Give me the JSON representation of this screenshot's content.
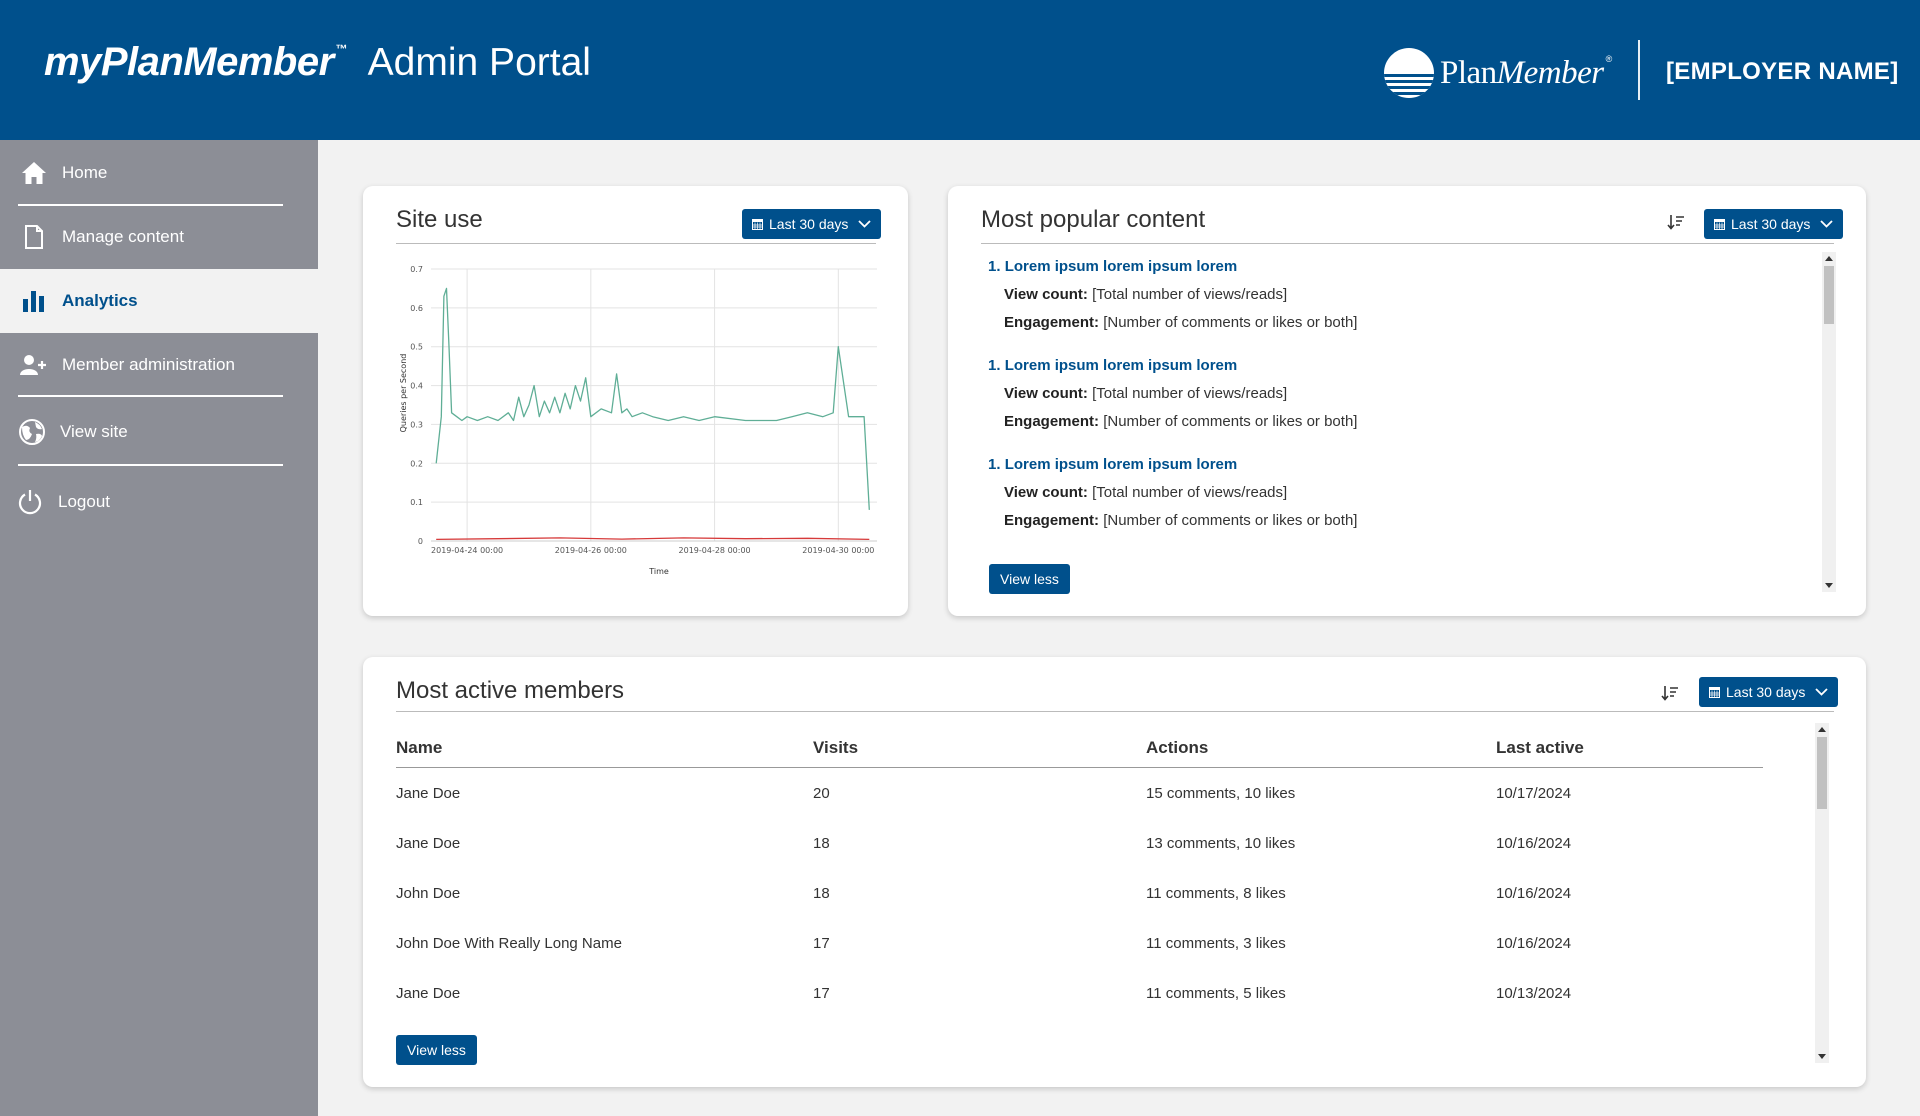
{
  "header": {
    "brand_name": "myPlanMember",
    "brand_tm": "™",
    "portal_title": "Admin Portal",
    "logo_plan": "Plan",
    "logo_member": "Member",
    "logo_reg": "®",
    "employer": "[EMPLOYER NAME]"
  },
  "sidebar": {
    "items": [
      {
        "label": "Home",
        "icon": "home-icon"
      },
      {
        "label": "Manage content",
        "icon": "document-icon"
      },
      {
        "label": "Analytics",
        "icon": "bar-chart-icon"
      },
      {
        "label": "Member administration",
        "icon": "user-plus-icon"
      },
      {
        "label": "View site",
        "icon": "globe-icon"
      },
      {
        "label": "Logout",
        "icon": "power-icon"
      }
    ],
    "active": "Analytics"
  },
  "site_use": {
    "title": "Site use",
    "date_range": "Last 30 days"
  },
  "popular": {
    "title": "Most popular content",
    "date_range": "Last 30 days",
    "view_count_label": "View count:",
    "engagement_label": "Engagement:",
    "items": [
      {
        "num": "1.",
        "title": "Lorem ipsum lorem ipsum lorem",
        "views": "[Total number of views/reads]",
        "engagement": "[Number of comments or likes or both]"
      },
      {
        "num": "1.",
        "title": "Lorem ipsum lorem ipsum lorem",
        "views": "[Total number of views/reads]",
        "engagement": "[Number of comments or likes or both]"
      },
      {
        "num": "1.",
        "title": "Lorem ipsum lorem ipsum lorem",
        "views": "[Total number of views/reads]",
        "engagement": "[Number of comments or likes or both]"
      }
    ],
    "view_less": "View less"
  },
  "members": {
    "title": "Most active members",
    "date_range": "Last 30 days",
    "columns": [
      "Name",
      "Visits",
      "Actions",
      "Last active"
    ],
    "rows": [
      [
        "Jane Doe",
        "20",
        "15 comments, 10 likes",
        "10/17/2024"
      ],
      [
        "Jane Doe",
        "18",
        "13 comments, 10 likes",
        "10/16/2024"
      ],
      [
        "John Doe",
        "18",
        "11 comments, 8 likes",
        "10/16/2024"
      ],
      [
        "John Doe With Really Long Name",
        "17",
        "11 comments, 3 likes",
        "10/16/2024"
      ],
      [
        "Jane Doe",
        "17",
        "11 comments, 5 likes",
        "10/13/2024"
      ]
    ],
    "view_less": "View less"
  },
  "chart_data": {
    "type": "line",
    "title": "",
    "xlabel": "Time",
    "ylabel": "Queries per Second",
    "ylim": [
      0,
      0.7
    ],
    "yticks": [
      "0",
      "0.1",
      "0.2",
      "0.3",
      "0.4",
      "0.5",
      "0.6",
      "0.7"
    ],
    "xticks": [
      "2019-04-24 00:00",
      "2019-04-26 00:00",
      "2019-04-28 00:00",
      "2019-04-30 00:00"
    ],
    "xlim": [
      "2019-04-23 10:00",
      "2019-04-30 15:00"
    ],
    "grid": true,
    "series": [
      {
        "color": "#5fae96",
        "x": [
          "2019-04-23 12:00",
          "2019-04-23 14:00",
          "2019-04-23 15:00",
          "2019-04-23 16:00",
          "2019-04-23 17:00",
          "2019-04-23 18:00",
          "2019-04-23 20:00",
          "2019-04-23 22:00",
          "2019-04-24 00:00",
          "2019-04-24 04:00",
          "2019-04-24 08:00",
          "2019-04-24 12:00",
          "2019-04-24 16:00",
          "2019-04-24 18:00",
          "2019-04-24 20:00",
          "2019-04-24 22:00",
          "2019-04-25 00:00",
          "2019-04-25 02:00",
          "2019-04-25 04:00",
          "2019-04-25 06:00",
          "2019-04-25 08:00",
          "2019-04-25 10:00",
          "2019-04-25 12:00",
          "2019-04-25 14:00",
          "2019-04-25 16:00",
          "2019-04-25 18:00",
          "2019-04-25 20:00",
          "2019-04-25 22:00",
          "2019-04-26 00:00",
          "2019-04-26 04:00",
          "2019-04-26 08:00",
          "2019-04-26 10:00",
          "2019-04-26 12:00",
          "2019-04-26 14:00",
          "2019-04-26 16:00",
          "2019-04-26 20:00",
          "2019-04-27 00:00",
          "2019-04-27 06:00",
          "2019-04-27 12:00",
          "2019-04-27 18:00",
          "2019-04-28 00:00",
          "2019-04-28 12:00",
          "2019-04-29 00:00",
          "2019-04-29 06:00",
          "2019-04-29 12:00",
          "2019-04-29 18:00",
          "2019-04-29 22:00",
          "2019-04-30 00:00",
          "2019-04-30 04:00",
          "2019-04-30 08:00",
          "2019-04-30 10:00",
          "2019-04-30 12:00"
        ],
        "y": [
          0.2,
          0.32,
          0.63,
          0.65,
          0.5,
          0.33,
          0.32,
          0.31,
          0.32,
          0.31,
          0.32,
          0.31,
          0.33,
          0.31,
          0.37,
          0.32,
          0.35,
          0.4,
          0.32,
          0.36,
          0.33,
          0.37,
          0.33,
          0.38,
          0.34,
          0.4,
          0.36,
          0.42,
          0.32,
          0.34,
          0.33,
          0.43,
          0.33,
          0.34,
          0.32,
          0.33,
          0.32,
          0.31,
          0.32,
          0.31,
          0.32,
          0.31,
          0.31,
          0.32,
          0.33,
          0.32,
          0.33,
          0.5,
          0.32,
          0.32,
          0.32,
          0.08
        ]
      },
      {
        "color": "#d63a3a",
        "x": [
          "2019-04-23 12:00",
          "2019-04-24 12:00",
          "2019-04-25 12:00",
          "2019-04-26 12:00",
          "2019-04-27 12:00",
          "2019-04-28 12:00",
          "2019-04-29 12:00",
          "2019-04-30 12:00"
        ],
        "y": [
          0.004,
          0.006,
          0.008,
          0.005,
          0.008,
          0.006,
          0.007,
          0.004
        ]
      }
    ]
  }
}
